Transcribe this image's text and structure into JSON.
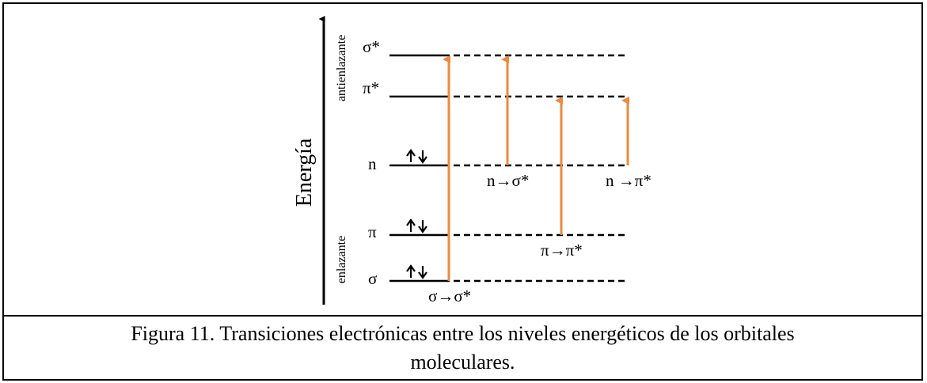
{
  "diagram": {
    "axis_label": "Energía",
    "region_labels": {
      "antibonding": "antienlazante",
      "bonding": "enlazante"
    },
    "levels": [
      {
        "id": "sigma-star",
        "label": "σ*"
      },
      {
        "id": "pi-star",
        "label": "π*"
      },
      {
        "id": "n",
        "label": "n"
      },
      {
        "id": "pi",
        "label": "π"
      },
      {
        "id": "sigma",
        "label": "σ"
      }
    ],
    "electron_pairs": [
      "n",
      "pi",
      "sigma"
    ],
    "transitions": [
      {
        "from": "sigma",
        "to": "sigma-star",
        "label": "σ→σ*"
      },
      {
        "from": "n",
        "to": "sigma-star",
        "label": "n→σ*"
      },
      {
        "from": "pi",
        "to": "pi-star",
        "label": "π→π*"
      },
      {
        "from": "n",
        "to": "pi-star",
        "label": "n →π*"
      }
    ],
    "colors": {
      "transition": "#ED8A3F",
      "line": "#000000"
    }
  },
  "caption": {
    "line1": "Figura 11. Transiciones electrónicas entre los niveles energéticos de los orbitales",
    "line2": "moleculares."
  }
}
